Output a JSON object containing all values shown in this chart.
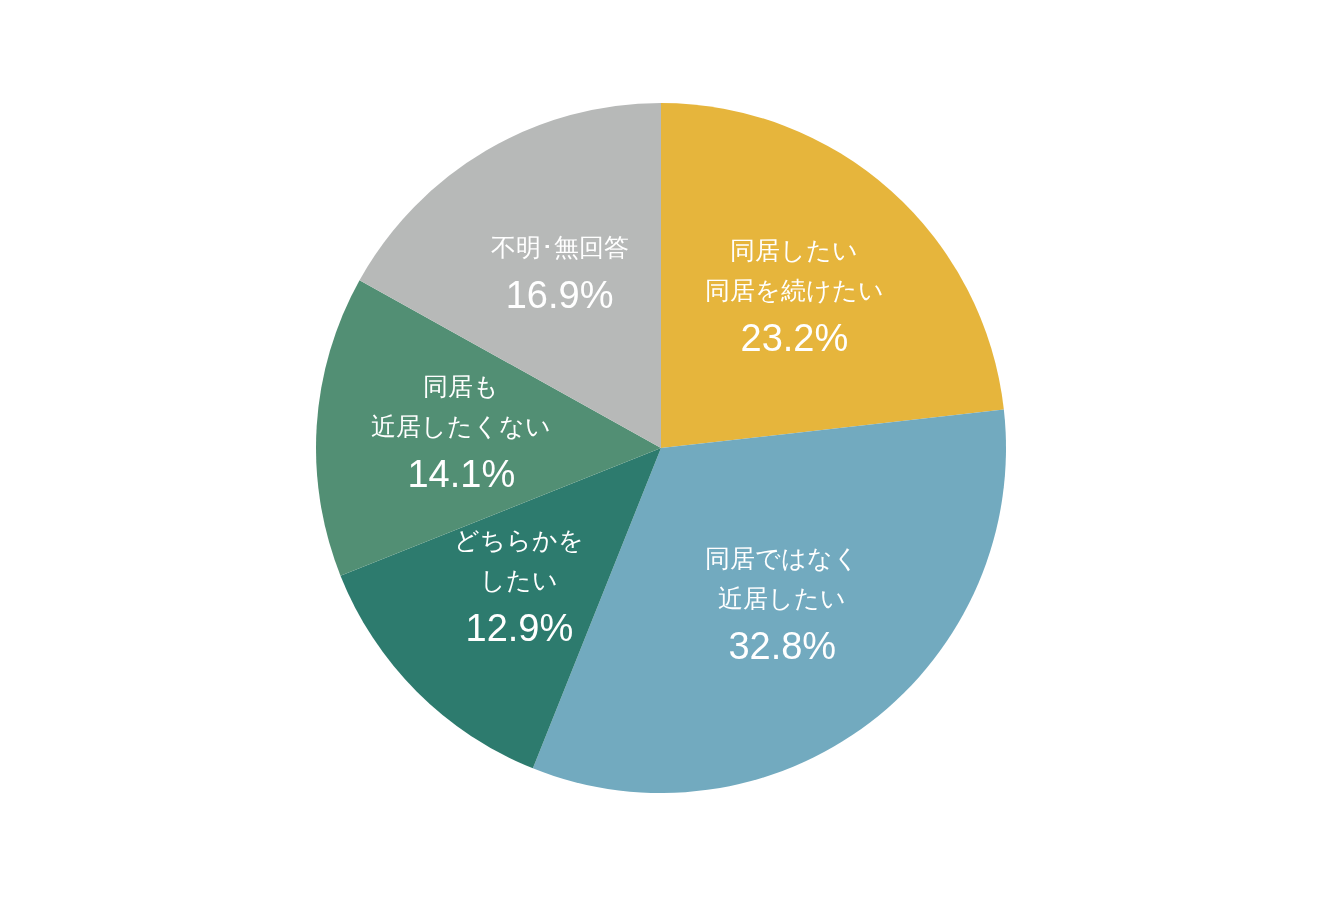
{
  "chart_data": {
    "type": "pie",
    "categories": [
      "同居したい同居を続けたい",
      "同居ではなく近居したい",
      "どちらかをしたい",
      "同居も近居したくない",
      "不明･無回答"
    ],
    "values": [
      23.2,
      32.8,
      12.9,
      14.1,
      16.9
    ],
    "value_labels": [
      "23.2%",
      "32.8%",
      "12.9%",
      "14.1%",
      "16.9%"
    ],
    "colors": [
      "#e6b53c",
      "#72aabf",
      "#2d7b6e",
      "#528f74",
      "#b7b9b8"
    ]
  }
}
